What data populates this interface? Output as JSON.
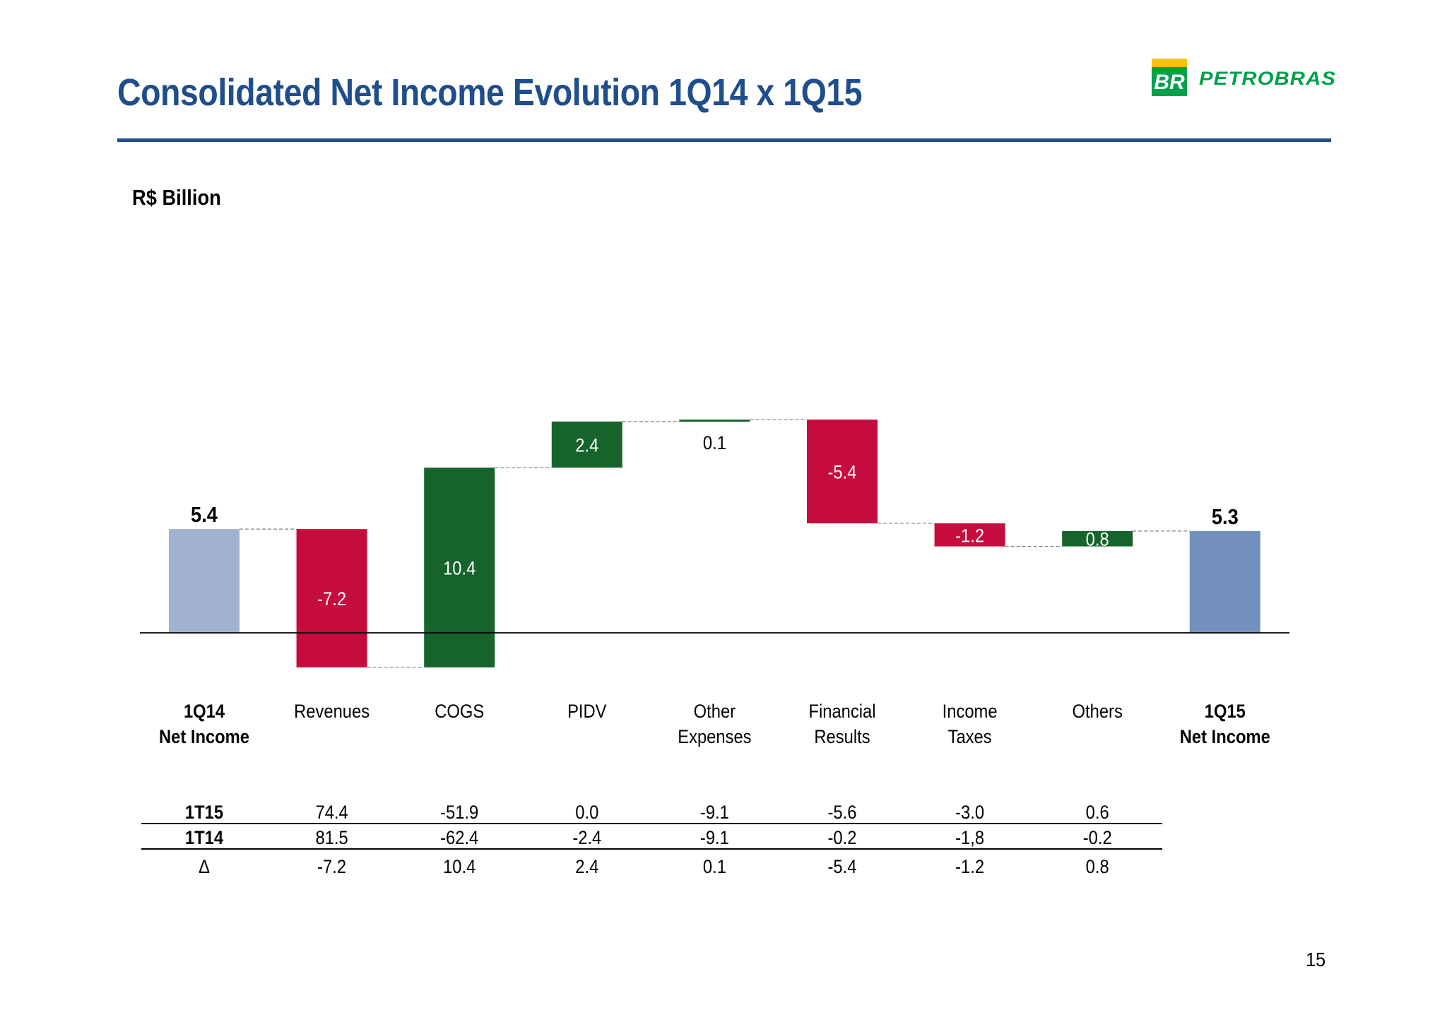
{
  "page": {
    "title": "Consolidated Net Income Evolution 1Q14 x 1Q15",
    "unit": "R$ Billion",
    "page_number": "15"
  },
  "logo": {
    "mark_text": "BR",
    "brand_text": "PETROBRAS"
  },
  "colors": {
    "title_blue": "#1f4e8c",
    "start_bar": "#a1b2d1",
    "end_bar": "#7390bd",
    "positive": "#16642c",
    "negative": "#c60c3c",
    "logo_green": "#00a14b",
    "logo_yellow": "#f5c400"
  },
  "chart_data": {
    "type": "waterfall",
    "title": "Consolidated Net Income Evolution 1Q14 x 1Q15",
    "ylabel": "R$ Billion",
    "categories": [
      [
        "1Q14",
        "Net Income"
      ],
      [
        "Revenues"
      ],
      [
        "COGS"
      ],
      [
        "PIDV"
      ],
      [
        "Other",
        "Expenses"
      ],
      [
        "Financial",
        "Results"
      ],
      [
        "Income",
        "Taxes"
      ],
      [
        "Others"
      ],
      [
        "1Q15",
        "Net Income"
      ]
    ],
    "values": [
      5.4,
      -7.2,
      10.4,
      2.4,
      0.1,
      -5.4,
      -1.2,
      0.8,
      5.3
    ],
    "labels": [
      "5.4",
      "-7.2",
      "10.4",
      "2.4",
      "0.1",
      "-5.4",
      "-1.2",
      "0.8",
      "5.3"
    ],
    "kinds": [
      "total",
      "delta",
      "delta",
      "delta",
      "delta",
      "delta",
      "delta",
      "delta",
      "total"
    ],
    "grid": false,
    "legend": "none"
  },
  "table": {
    "rows": [
      {
        "label": "1T15",
        "values": [
          "74.4",
          "-51.9",
          "0.0",
          "-9.1",
          "-5.6",
          "-3.0",
          "0.6"
        ]
      },
      {
        "label": "1T14",
        "values": [
          "81.5",
          "-62.4",
          "-2.4",
          "-9.1",
          "-0.2",
          "-1,8",
          "-0.2"
        ]
      },
      {
        "label": "Δ",
        "values": [
          "-7.2",
          "10.4",
          "2.4",
          "0.1",
          "-5.4",
          "-1.2",
          "0.8"
        ]
      }
    ]
  }
}
